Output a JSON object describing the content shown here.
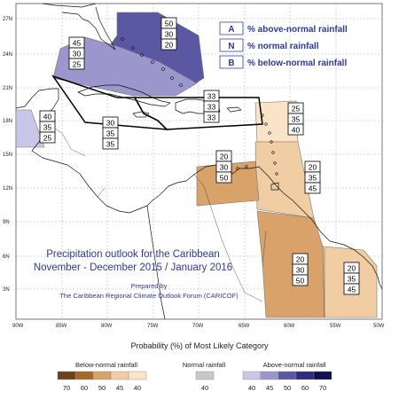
{
  "title": {
    "line1": "Precipitation outlook for the Caribbean",
    "line2": "November - December 2015 / January 2016"
  },
  "credit": {
    "line1": "Prepared by",
    "line2": "The Caribbean Regional Climate Outlook Forum (CARICOF)"
  },
  "key": [
    {
      "letter": "A",
      "text": "% above-normal rainfall"
    },
    {
      "letter": "N",
      "text": "% normal rainfall"
    },
    {
      "letter": "B",
      "text": "% below-normal rainfall"
    }
  ],
  "axes": {
    "lon_labels": [
      "90W",
      "85W",
      "80W",
      "75W",
      "70W",
      "65W",
      "60W",
      "55W",
      "50W"
    ],
    "lat_labels": [
      "27N",
      "24N",
      "21N",
      "18N",
      "15N",
      "12N",
      "9N",
      "6N",
      "3N"
    ]
  },
  "zones": [
    {
      "id": "bahamas",
      "values": [
        "50",
        "30",
        "20"
      ],
      "category": "above",
      "level": 50,
      "color": "#5b58a3"
    },
    {
      "id": "north-central",
      "values": [
        "45",
        "30",
        "25"
      ],
      "category": "above",
      "level": 45,
      "color": "#9b97cc"
    },
    {
      "id": "west-belize",
      "values": [
        "40",
        "35",
        "25"
      ],
      "category": "above",
      "level": 40,
      "color": "#c9c7e8"
    },
    {
      "id": "greater-antilles-west",
      "values": [
        "30",
        "35",
        "35"
      ],
      "category": "none",
      "level": 0,
      "color": "#ffffff"
    },
    {
      "id": "greater-antilles-east",
      "values": [
        "33",
        "33",
        "33"
      ],
      "category": "none",
      "level": 0,
      "color": "#ffffff"
    },
    {
      "id": "leeward-islands",
      "values": [
        "25",
        "35",
        "40"
      ],
      "category": "below",
      "level": 40,
      "color": "#fbe3c7"
    },
    {
      "id": "windward-islands",
      "values": [
        "20",
        "35",
        "45"
      ],
      "category": "below",
      "level": 45,
      "color": "#f1cda4"
    },
    {
      "id": "abc-islands",
      "values": [
        "20",
        "30",
        "50"
      ],
      "category": "below",
      "level": 50,
      "color": "#d8a26a"
    },
    {
      "id": "guyana",
      "values": [
        "20",
        "30",
        "50"
      ],
      "category": "below",
      "level": 50,
      "color": "#d8a26a"
    },
    {
      "id": "suriname-fguiana",
      "values": [
        "20",
        "35",
        "45"
      ],
      "category": "below",
      "level": 45,
      "color": "#f1cda4"
    }
  ],
  "scale": {
    "title": "Probability (%) of Most Likely Category",
    "below": {
      "label": "Below-normal rainfall",
      "items": [
        {
          "value": "70",
          "color": "#6b4316"
        },
        {
          "value": "60",
          "color": "#a5692a"
        },
        {
          "value": "50",
          "color": "#d8a26a"
        },
        {
          "value": "45",
          "color": "#f1cda4"
        },
        {
          "value": "40",
          "color": "#fbe3c7"
        }
      ]
    },
    "normal": {
      "label": "Normal rainfall",
      "items": [
        {
          "value": "40",
          "color": "#c8c8c8"
        }
      ]
    },
    "above": {
      "label": "Above-normal rainfall",
      "items": [
        {
          "value": "40",
          "color": "#c9c7e8"
        },
        {
          "value": "45",
          "color": "#9b97cc"
        },
        {
          "value": "50",
          "color": "#5b58a3"
        },
        {
          "value": "60",
          "color": "#2f2a80"
        },
        {
          "value": "70",
          "color": "#130f4a"
        }
      ]
    }
  }
}
